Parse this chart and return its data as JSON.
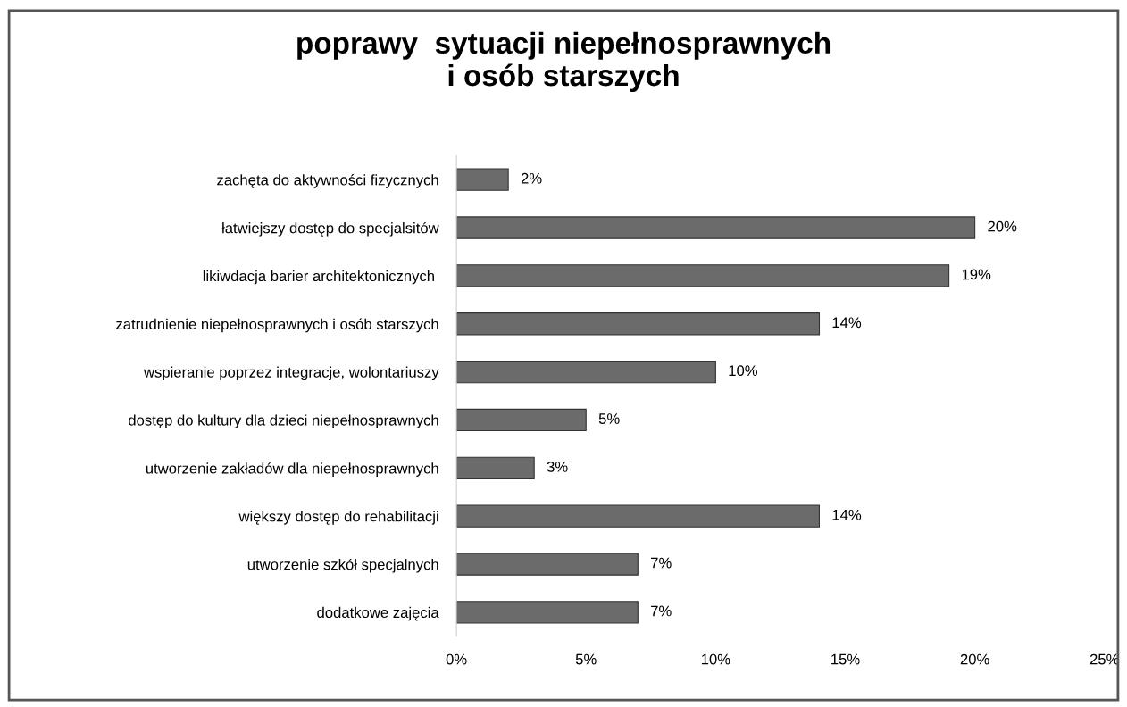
{
  "chart_data": {
    "type": "bar",
    "orientation": "horizontal",
    "title": "poprawy  sytuacji niepełnosprawnych\ni osób starszych",
    "categories": [
      "zachęta do aktywności fizycznych",
      "łatwiejszy dostęp do specjalsitów",
      "likiwdacja barier architektonicznych ",
      "zatrudnienie niepełnosprawnych i osób starszych",
      "wspieranie poprzez integracje, wolontariuszy",
      "dostęp do kultury dla dzieci niepełnosprawnych",
      "utworzenie zakładów dla niepełnosprawnych",
      "większy dostęp do rehabilitacji",
      "utworzenie szkół specjalnych",
      "dodatkowe zajęcia"
    ],
    "values": [
      2,
      20,
      19,
      14,
      10,
      5,
      3,
      14,
      7,
      7
    ],
    "value_labels": [
      "2%",
      "20%",
      "19%",
      "14%",
      "10%",
      "5%",
      "3%",
      "14%",
      "7%",
      "7%"
    ],
    "color": "#6b6b6b",
    "xlim": [
      0,
      25
    ],
    "xticks": [
      {
        "value": 0,
        "label": "0%"
      },
      {
        "value": 5,
        "label": "5%"
      },
      {
        "value": 10,
        "label": "10%"
      },
      {
        "value": 15,
        "label": "15%"
      },
      {
        "value": 20,
        "label": "20%"
      },
      {
        "value": 25,
        "label": "25%"
      }
    ],
    "grid": false
  }
}
